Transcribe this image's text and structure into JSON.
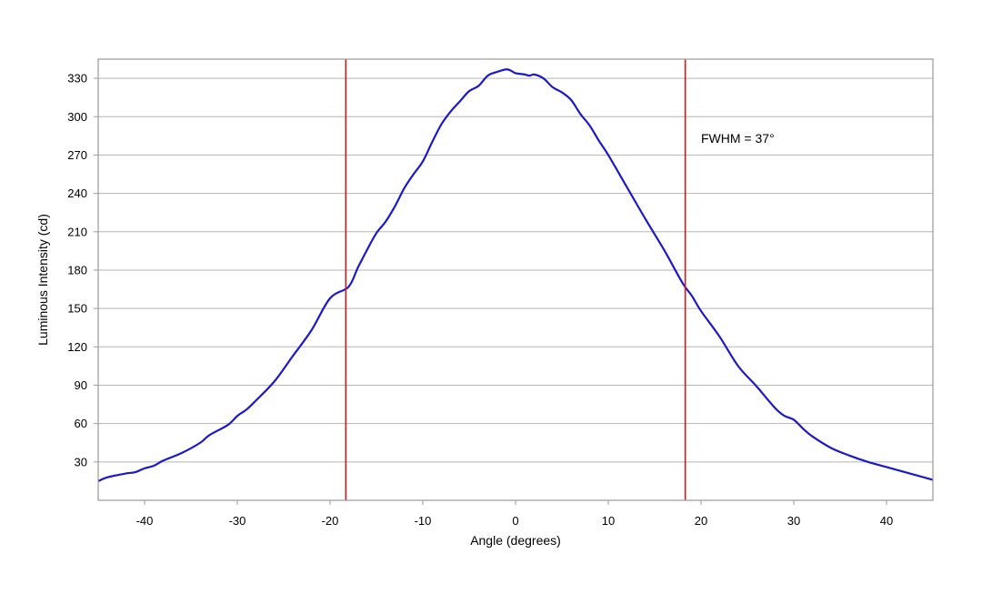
{
  "chart_data": {
    "type": "line",
    "title": "",
    "xlabel": "Angle (degrees)",
    "ylabel": "Luminous Intensity (cd)",
    "xlim": [
      -45,
      45
    ],
    "ylim": [
      0,
      345
    ],
    "xticks": [
      -40,
      -30,
      -20,
      -10,
      0,
      10,
      20,
      30,
      40
    ],
    "yticks": [
      30,
      60,
      90,
      120,
      150,
      180,
      210,
      240,
      270,
      300,
      330
    ],
    "xtick_labels": [
      "-40",
      "-30",
      "-20",
      "-10",
      "0",
      "10",
      "20",
      "30",
      "40"
    ],
    "ytick_labels": [
      "30",
      "60",
      "90",
      "120",
      "150",
      "180",
      "210",
      "240",
      "270",
      "300",
      "330"
    ],
    "grid": "horizontal",
    "legend": "none",
    "series": [
      {
        "color": "#1a1acc",
        "x": [
          -45,
          -44,
          -42,
          -41,
          -40,
          -39,
          -38,
          -36,
          -34,
          -33,
          -31,
          -30,
          -29,
          -28,
          -26,
          -24,
          -22,
          -20,
          -18,
          -17,
          -16,
          -15,
          -14,
          -13,
          -12,
          -11,
          -10,
          -9,
          -8,
          -7,
          -6,
          -5,
          -4,
          -3,
          -2,
          -1,
          -0.5,
          0,
          1,
          1.5,
          2,
          3,
          4,
          5,
          6,
          7,
          8,
          9,
          10,
          12,
          14,
          16,
          18,
          19,
          20,
          22,
          24,
          26,
          28,
          29,
          30,
          31,
          32,
          34,
          36,
          38,
          40,
          42,
          44,
          45
        ],
        "y": [
          15,
          18,
          21,
          22,
          25,
          27,
          31,
          37,
          45,
          51,
          59,
          66,
          71,
          78,
          93,
          113,
          133,
          158,
          167,
          182,
          196,
          209,
          218,
          230,
          244,
          255,
          265,
          280,
          294,
          304,
          312,
          320,
          324,
          332,
          335,
          337,
          336,
          334,
          333,
          332,
          333,
          330,
          323,
          319,
          313,
          302,
          293,
          281,
          270,
          245,
          220,
          196,
          170,
          160,
          148,
          128,
          105,
          89,
          72,
          66,
          63,
          56,
          50,
          41,
          35,
          30,
          26,
          22,
          18,
          16
        ]
      }
    ],
    "vlines": [
      {
        "x": -18.3,
        "color": "#d11a1a"
      },
      {
        "x": 18.3,
        "color": "#d11a1a"
      }
    ],
    "annotation": {
      "text": "FWHM = 37°",
      "x": 20,
      "y": 283
    }
  }
}
